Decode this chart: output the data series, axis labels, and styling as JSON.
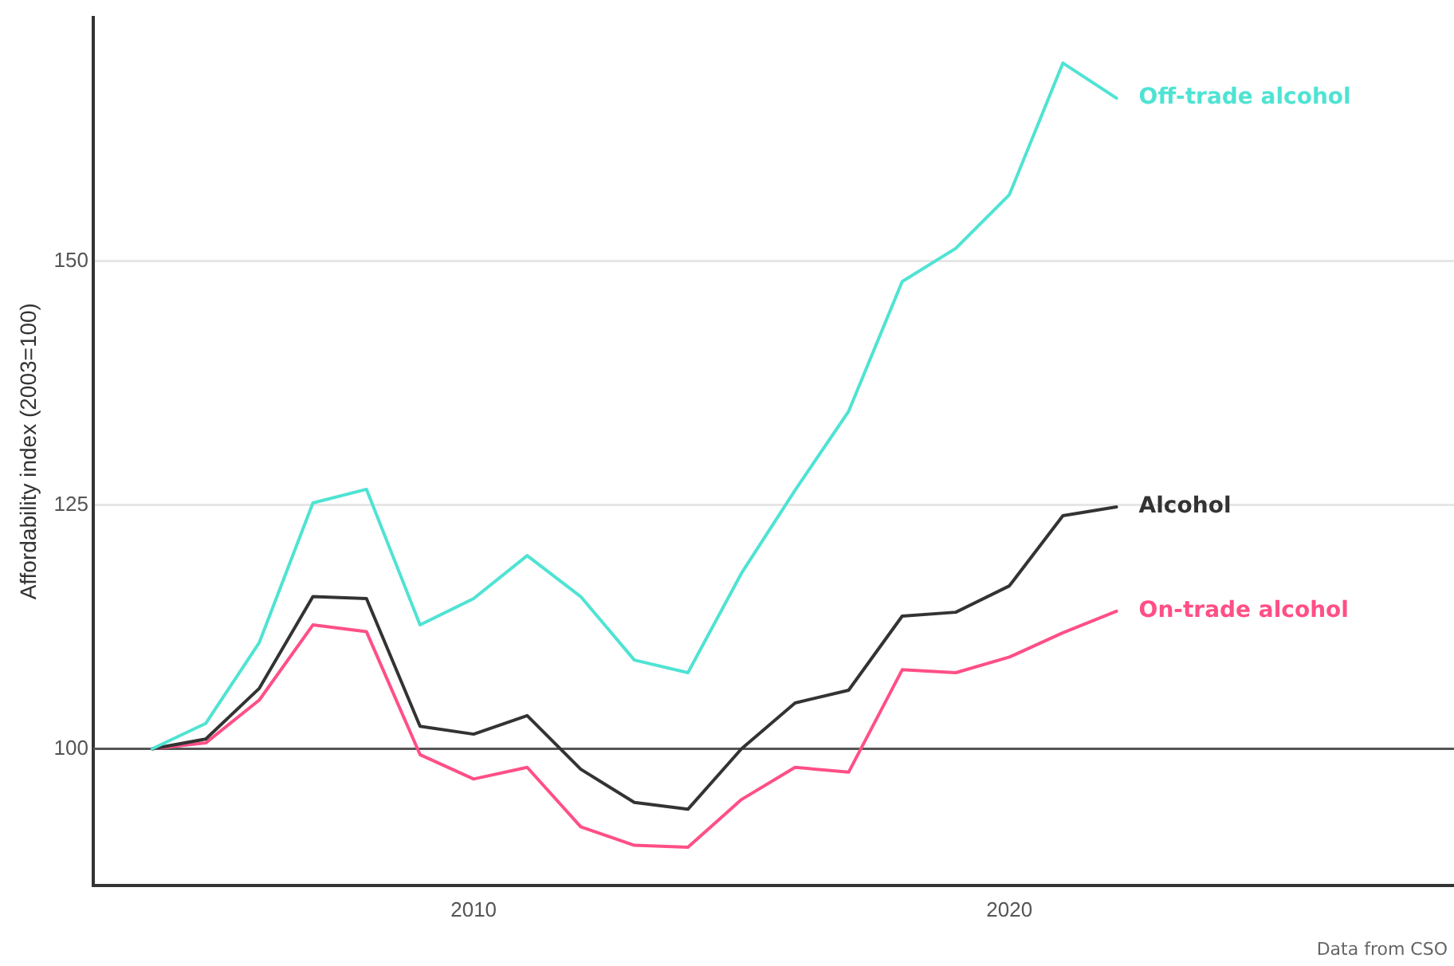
{
  "chart_data": {
    "type": "line",
    "ylabel": "Affordability index (2003=100)",
    "x": [
      2004,
      2005,
      2006,
      2007,
      2008,
      2009,
      2010,
      2011,
      2012,
      2013,
      2014,
      2015,
      2016,
      2017,
      2018,
      2019,
      2020,
      2021,
      2022
    ],
    "series": [
      {
        "name": "Off-trade alcohol",
        "color": "#4fe3d3",
        "values": [
          100,
          102.6,
          110.9,
          125.2,
          126.6,
          112.7,
          115.4,
          119.8,
          115.6,
          109.1,
          107.8,
          118.0,
          126.5,
          134.6,
          147.9,
          151.3,
          156.8,
          170.3,
          166.7
        ]
      },
      {
        "name": "Alcohol",
        "color": "#333333",
        "values": [
          100,
          101.0,
          106.2,
          115.6,
          115.4,
          102.3,
          101.5,
          103.4,
          97.9,
          94.5,
          93.8,
          100,
          104.7,
          106.0,
          113.6,
          114.0,
          116.7,
          123.9,
          124.8
        ]
      },
      {
        "name": "On-trade alcohol",
        "color": "#ff4f86",
        "values": [
          100,
          100.6,
          105.0,
          112.7,
          112.0,
          99.4,
          96.9,
          98.1,
          92.0,
          90.1,
          89.9,
          94.8,
          98.1,
          97.6,
          108.1,
          107.8,
          109.4,
          111.9,
          114.1
        ]
      }
    ],
    "xlim": [
      2002.9,
      2028.3
    ],
    "ylim": [
      86,
      175
    ],
    "xticks": [
      2010,
      2020
    ],
    "yticks": [
      100,
      125,
      150
    ],
    "grid": "y",
    "legend": false,
    "marker": "none",
    "line_style": "solid",
    "ref_lines": [
      {
        "axis": "y",
        "value": 100,
        "color": "#555555"
      }
    ],
    "annotations": [
      "Data from CSO"
    ]
  }
}
